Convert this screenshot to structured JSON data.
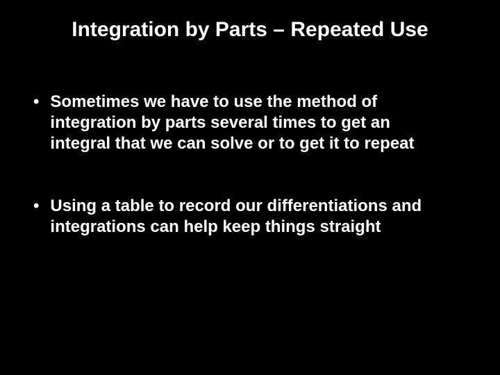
{
  "slide": {
    "title": "Integration by Parts – Repeated Use",
    "bullets": [
      "Sometimes we have to use the method of integration by parts several times to get an integral that we can solve or to get it to repeat",
      "Using a table to record our differentiations and integrations can help keep things straight"
    ],
    "background_color": "#000000",
    "text_color": "#ffffff",
    "title_fontsize": 30,
    "body_fontsize": 24,
    "font_family": "Arial"
  }
}
